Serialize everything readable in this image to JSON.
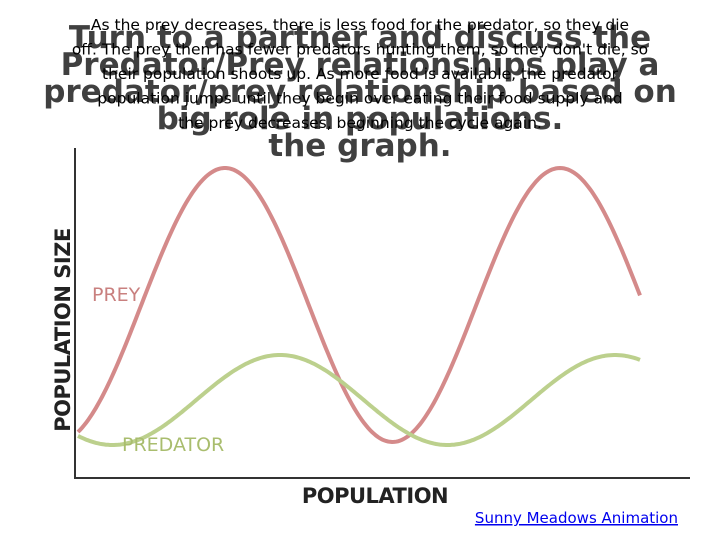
{
  "body_lines": [
    "As the prey decreases, there is less food for the predator, so they die",
    "off. The prey then has fewer predators hunting them, so they don't die, so",
    "their population shoots up. As more food is available, the predator",
    "population jumps until they begin over eating their food supply and",
    "the prey decreases, beginning the cycle again."
  ],
  "title_lines": [
    "Turn to a partner and discuss the",
    "Predator/Prey relationships play a",
    "predator/prey relationship based on",
    "big role in populations.",
    "the graph."
  ],
  "graph": {
    "y_axis_label": "POPULATION SIZE",
    "x_axis_label": "POPULATION",
    "prey_label": "PREY",
    "predator_label": "PREDATOR"
  },
  "credit_link": "Sunny Meadows Animation"
}
